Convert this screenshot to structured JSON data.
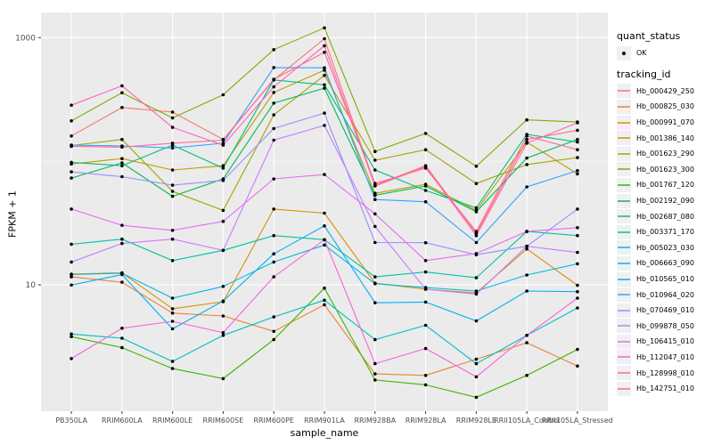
{
  "chart_data": {
    "type": "line",
    "title": "",
    "xlabel": "sample_name",
    "ylabel": "FPKM + 1",
    "y_scale": "log10",
    "ylim": [
      0.95,
      1600
    ],
    "grid": true,
    "legend_position": "right",
    "y_ticks": [
      {
        "label": "1000",
        "value": 1000
      },
      {
        "label": "10",
        "value": 10
      }
    ],
    "y_minor_gridlines": [
      100
    ],
    "categories": [
      "PB350LA",
      "RRIM600LA",
      "RRIM600LE",
      "RRIM600SE",
      "RRIM600PE",
      "RRIM901LA",
      "RRIM928BA",
      "RRIM928LA",
      "RRIM928LE",
      "RRII105LA_Control",
      "RRII105LA_Stressed"
    ],
    "legend": {
      "quant_status": {
        "title": "quant_status",
        "entries": [
          {
            "label": "OK",
            "marker": "point",
            "color": "#000000"
          }
        ]
      },
      "tracking_id": {
        "title": "tracking_id"
      }
    },
    "series": [
      {
        "name": "Hb_000429_250",
        "color": "#F8766D",
        "values": [
          160,
          272,
          250,
          150,
          455,
          980,
          64,
          92,
          26,
          150,
          178
        ]
      },
      {
        "name": "Hb_000825_030",
        "color": "#EA8331",
        "values": [
          11.6,
          10.5,
          5.9,
          5.6,
          4.2,
          6.9,
          1.9,
          1.85,
          2.5,
          3.4,
          2.2
        ]
      },
      {
        "name": "Hb_000991_070",
        "color": "#D89000",
        "values": [
          12.2,
          12.5,
          6.4,
          7.3,
          41,
          38,
          10.3,
          9.2,
          8.6,
          19.5,
          9.9
        ]
      },
      {
        "name": "Hb_001386_140",
        "color": "#C09B00",
        "values": [
          95,
          105,
          85,
          92,
          360,
          545,
          55,
          65,
          40,
          143,
          79
        ]
      },
      {
        "name": "Hb_001623_290",
        "color": "#A3A500",
        "values": [
          134,
          150,
          57,
          40,
          237,
          495,
          102,
          124,
          66,
          94,
          107
        ]
      },
      {
        "name": "Hb_001623_300",
        "color": "#7CAE00",
        "values": [
          212,
          358,
          224,
          345,
          800,
          1200,
          120,
          168,
          91,
          216,
          208
        ]
      },
      {
        "name": "Hb_001767_120",
        "color": "#39B600",
        "values": [
          3.8,
          3.1,
          2.1,
          1.74,
          3.6,
          9.4,
          1.7,
          1.55,
          1.23,
          1.85,
          3.0
        ]
      },
      {
        "name": "Hb_002192_090",
        "color": "#00BB4E",
        "values": [
          73,
          97,
          52,
          72,
          295,
          390,
          53,
          63,
          39,
          106,
          150
        ]
      },
      {
        "name": "Hb_002687_080",
        "color": "#00BF7D",
        "values": [
          98,
          92,
          135,
          88,
          455,
          415,
          85,
          58,
          42,
          165,
          143
        ]
      },
      {
        "name": "Hb_003371_170",
        "color": "#00C1A3",
        "values": [
          21.3,
          23.4,
          15.7,
          19.0,
          25,
          23.2,
          11.6,
          12.7,
          11.4,
          27,
          25
        ]
      },
      {
        "name": "Hb_005023_030",
        "color": "#00BFC4",
        "values": [
          4.0,
          3.7,
          2.4,
          3.9,
          5.5,
          7.5,
          3.6,
          4.7,
          2.3,
          3.9,
          6.5
        ]
      },
      {
        "name": "Hb_006663_090",
        "color": "#00BAE0",
        "values": [
          12.1,
          12.4,
          7.8,
          9.7,
          15.3,
          21,
          10.2,
          9.5,
          8.9,
          12,
          14.8
        ]
      },
      {
        "name": "Hb_010565_010",
        "color": "#00B0F6",
        "values": [
          9.95,
          12.1,
          4.4,
          7.4,
          17.8,
          30,
          7.15,
          7.25,
          5.1,
          8.9,
          8.8
        ]
      },
      {
        "name": "Hb_010964_020",
        "color": "#35A2FF",
        "values": [
          135,
          133,
          128,
          140,
          573,
          570,
          49,
          47,
          22,
          62,
          84
        ]
      },
      {
        "name": "Hb_070469_010",
        "color": "#9590FF",
        "values": [
          82,
          75,
          64,
          70,
          184,
          245,
          22,
          21.9,
          17.5,
          20.5,
          41
        ]
      },
      {
        "name": "Hb_099878_050",
        "color": "#C77CFF",
        "values": [
          15.3,
          21.6,
          23.4,
          19,
          148,
          195,
          29.7,
          9.2,
          8.4,
          20.5,
          18.3
        ]
      },
      {
        "name": "Hb_106415_010",
        "color": "#E76BF3",
        "values": [
          41,
          30.3,
          27.6,
          32.6,
          72,
          78,
          37.5,
          15.7,
          17.9,
          27,
          29
        ]
      },
      {
        "name": "Hb_112047_010",
        "color": "#FA62DB",
        "values": [
          2.53,
          4.45,
          5.07,
          4.1,
          11.6,
          23.2,
          2.3,
          3.05,
          1.8,
          3.9,
          7.8
        ]
      },
      {
        "name": "Hb_128998_010",
        "color": "#FF62BC",
        "values": [
          284,
          408,
          188,
          135,
          400,
          860,
          63,
          90,
          25,
          140,
          205
        ]
      },
      {
        "name": "Hb_142751_010",
        "color": "#FF6A98",
        "values": [
          132,
          130,
          140,
          148,
          460,
          760,
          66,
          88,
          27,
          160,
          124
        ]
      }
    ]
  },
  "colors": {
    "panel_bg": "#EBEBEB",
    "grid_major": "#FFFFFF",
    "grid_minor": "#F5F5F5",
    "tick_mark": "#333333",
    "tick_label": "#4D4D4D",
    "point": "#000000"
  },
  "layout_text": {
    "note": ""
  }
}
